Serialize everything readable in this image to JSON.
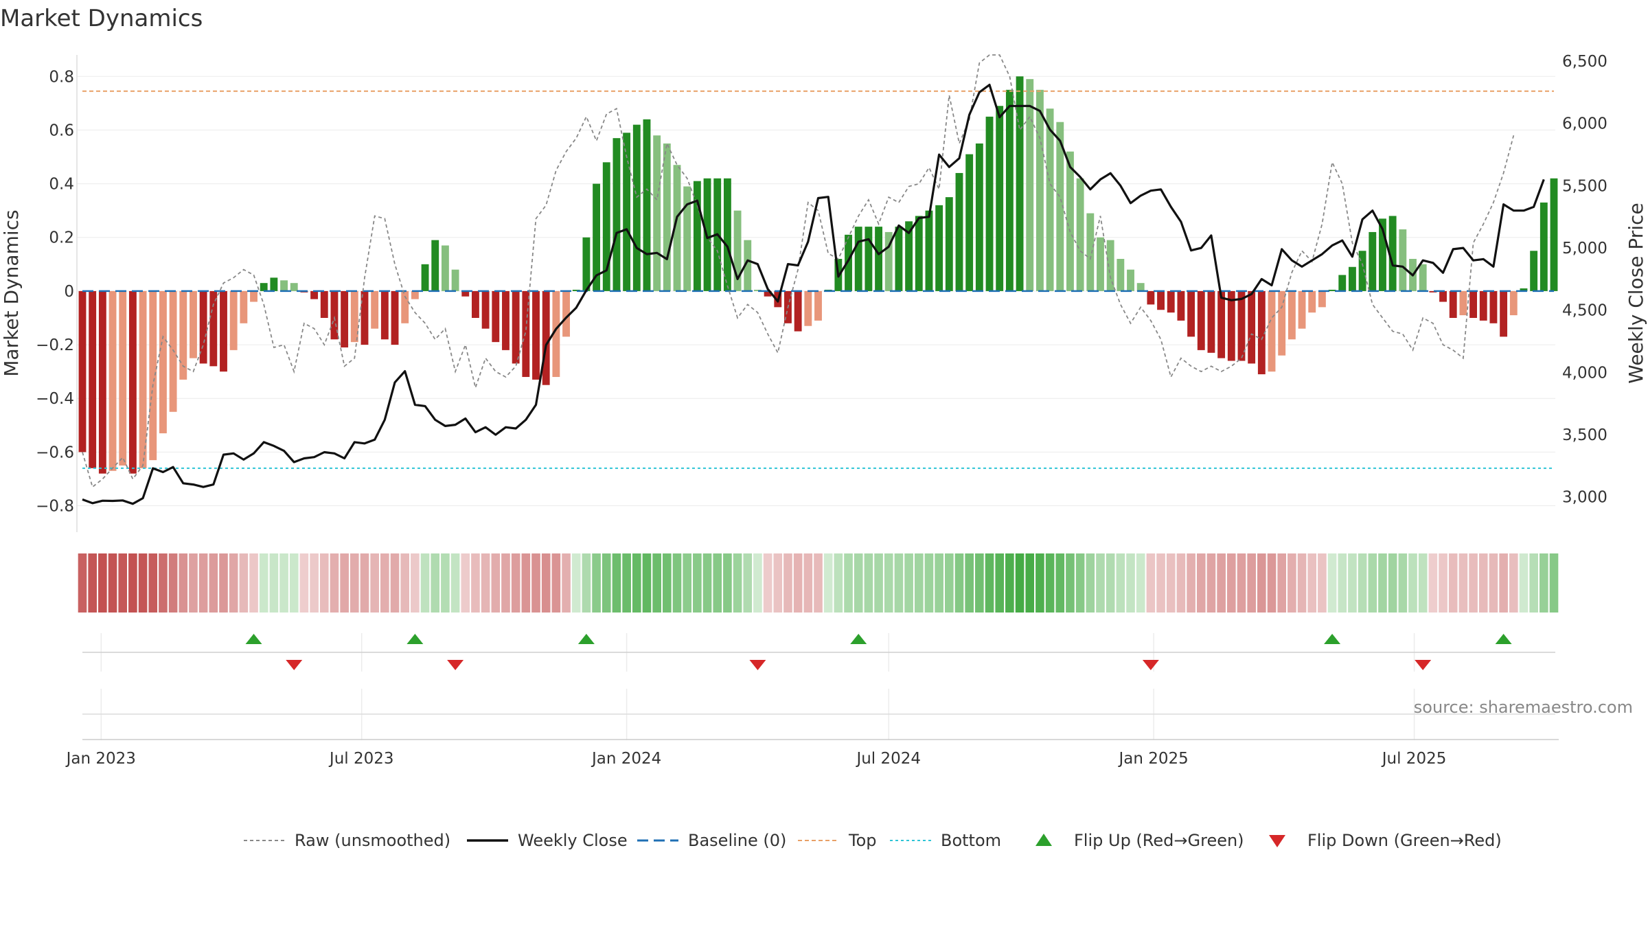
{
  "chart_data": {
    "type": "bar",
    "title": "Market Dynamics",
    "ylabel": "Market Dynamics",
    "y2label": "Weekly Close Price",
    "ylim": [
      -0.86,
      0.88
    ],
    "y2lim": [
      2800,
      6550
    ],
    "yticks": [
      -0.8,
      -0.6,
      -0.4,
      -0.2,
      0,
      0.2,
      0.4,
      0.6,
      0.8
    ],
    "ytick_labels": [
      "−0.8",
      "−0.6",
      "−0.4",
      "−0.2",
      "0",
      "0.2",
      "0.4",
      "0.6",
      "0.8"
    ],
    "y2ticks": [
      3000,
      3500,
      4000,
      4500,
      5000,
      5500,
      6000,
      6500
    ],
    "y2tick_labels": [
      "3,000",
      "3,500",
      "4,000",
      "4,500",
      "5,000",
      "5,500",
      "6,000",
      "6,500"
    ],
    "x_start": "2022-12-19",
    "x_step_days": 7,
    "xticks": [
      {
        "label": "Jan 2023",
        "index": 1.86
      },
      {
        "label": "Jul 2023",
        "index": 27.71
      },
      {
        "label": "Jan 2024",
        "index": 54.0
      },
      {
        "label": "Jul 2024",
        "index": 80.0
      },
      {
        "label": "Jan 2025",
        "index": 106.29
      },
      {
        "label": "Jul 2025",
        "index": 132.14
      }
    ],
    "top_level": 0.745,
    "bottom_level": -0.66,
    "grid": true,
    "legend_position": "bottom",
    "series": [
      {
        "name": "Raw (unsmoothed)",
        "values": [
          -0.6,
          -0.73,
          -0.7,
          -0.66,
          -0.62,
          -0.7,
          -0.65,
          -0.35,
          -0.17,
          -0.22,
          -0.28,
          -0.3,
          -0.2,
          -0.05,
          0.03,
          0.05,
          0.08,
          0.06,
          -0.05,
          -0.21,
          -0.2,
          -0.3,
          -0.12,
          -0.14,
          -0.2,
          -0.1,
          -0.28,
          -0.25,
          0.05,
          0.28,
          0.27,
          0.1,
          -0.02,
          -0.08,
          -0.12,
          -0.18,
          -0.14,
          -0.3,
          -0.2,
          -0.36,
          -0.25,
          -0.3,
          -0.32,
          -0.28,
          -0.15,
          0.27,
          0.32,
          0.45,
          0.52,
          0.57,
          0.65,
          0.56,
          0.66,
          0.68,
          0.5,
          0.35,
          0.38,
          0.34,
          0.55,
          0.47,
          0.42,
          0.32,
          0.2,
          0.15,
          0.02,
          -0.1,
          -0.05,
          -0.08,
          -0.16,
          -0.23,
          -0.06,
          0.08,
          0.33,
          0.3,
          0.14,
          0.12,
          0.2,
          0.28,
          0.34,
          0.25,
          0.35,
          0.33,
          0.39,
          0.4,
          0.46,
          0.38,
          0.73,
          0.55,
          0.64,
          0.85,
          0.88,
          0.88,
          0.8,
          0.6,
          0.65,
          0.57,
          0.4,
          0.35,
          0.22,
          0.15,
          0.12,
          0.28,
          0.05,
          -0.05,
          -0.12,
          -0.06,
          -0.11,
          -0.18,
          -0.32,
          -0.25,
          -0.28,
          -0.3,
          -0.28,
          -0.3,
          -0.28,
          -0.25,
          -0.16,
          -0.18,
          -0.1,
          -0.06,
          0.07,
          0.15,
          0.11,
          0.25,
          0.48,
          0.4,
          0.18,
          0.1,
          -0.05,
          -0.1,
          -0.15,
          -0.16,
          -0.22,
          -0.1,
          -0.12,
          -0.2,
          -0.22,
          -0.25,
          0.18,
          0.25,
          0.33,
          0.44,
          0.58
        ]
      },
      {
        "name": "Weekly Close",
        "values": [
          2980,
          2950,
          2970,
          2968,
          2972,
          2945,
          2990,
          3230,
          3200,
          3240,
          3110,
          3100,
          3080,
          3100,
          3340,
          3350,
          3300,
          3350,
          3440,
          3410,
          3370,
          3280,
          3310,
          3320,
          3360,
          3350,
          3310,
          3440,
          3430,
          3460,
          3620,
          3920,
          4010,
          3740,
          3730,
          3620,
          3570,
          3580,
          3630,
          3520,
          3560,
          3500,
          3560,
          3550,
          3620,
          3740,
          4220,
          4350,
          4440,
          4520,
          4660,
          4780,
          4820,
          5120,
          5150,
          5000,
          4950,
          4960,
          4910,
          5250,
          5350,
          5380,
          5080,
          5110,
          5010,
          4750,
          4900,
          4870,
          4670,
          4570,
          4870,
          4860,
          5050,
          5400,
          5410,
          4770,
          4900,
          5050,
          5070,
          4950,
          5010,
          5180,
          5120,
          5240,
          5250,
          5750,
          5650,
          5720,
          6070,
          6250,
          6310,
          6050,
          6140,
          6140,
          6140,
          6100,
          5950,
          5860,
          5650,
          5570,
          5470,
          5550,
          5600,
          5500,
          5360,
          5420,
          5460,
          5470,
          5330,
          5210,
          4980,
          5000,
          5100,
          4600,
          4580,
          4590,
          4630,
          4750,
          4700,
          4990,
          4900,
          4850,
          4900,
          4950,
          5020,
          5060,
          4930,
          5230,
          5300,
          5150,
          4860,
          4850,
          4780,
          4900,
          4880,
          4800,
          4990,
          5000,
          4900,
          4910,
          4850,
          5350,
          5300,
          5300,
          5330,
          5550
        ]
      },
      {
        "name": "Baseline (0)"
      },
      {
        "name": "Top"
      },
      {
        "name": "Bottom"
      },
      {
        "name": "Flip Up (Red→Green)",
        "indices": [
          17,
          33,
          50,
          77,
          124,
          141
        ]
      },
      {
        "name": "Flip Down (Green→Red)",
        "indices": [
          21,
          37,
          67,
          106,
          133
        ]
      }
    ],
    "bar_values": [
      -0.6,
      -0.66,
      -0.68,
      -0.67,
      -0.65,
      -0.68,
      -0.66,
      -0.63,
      -0.53,
      -0.45,
      -0.33,
      -0.25,
      -0.27,
      -0.28,
      -0.3,
      -0.22,
      -0.12,
      -0.04,
      0.03,
      0.05,
      0.04,
      0.03,
      -0.005,
      -0.03,
      -0.1,
      -0.18,
      -0.21,
      -0.19,
      -0.2,
      -0.14,
      -0.18,
      -0.2,
      -0.12,
      -0.03,
      0.1,
      0.19,
      0.17,
      0.08,
      -0.02,
      -0.1,
      -0.14,
      -0.19,
      -0.22,
      -0.27,
      -0.32,
      -0.33,
      -0.35,
      -0.32,
      -0.17,
      0.005,
      0.2,
      0.4,
      0.48,
      0.57,
      0.59,
      0.62,
      0.64,
      0.58,
      0.55,
      0.47,
      0.39,
      0.41,
      0.42,
      0.42,
      0.42,
      0.3,
      0.19,
      0.005,
      -0.02,
      -0.06,
      -0.12,
      -0.15,
      -0.13,
      -0.11,
      0.005,
      0.12,
      0.21,
      0.24,
      0.24,
      0.24,
      0.22,
      0.24,
      0.26,
      0.28,
      0.3,
      0.32,
      0.35,
      0.44,
      0.51,
      0.55,
      0.65,
      0.69,
      0.75,
      0.8,
      0.79,
      0.75,
      0.68,
      0.63,
      0.52,
      0.42,
      0.29,
      0.2,
      0.19,
      0.12,
      0.08,
      0.03,
      -0.05,
      -0.07,
      -0.08,
      -0.11,
      -0.17,
      -0.22,
      -0.23,
      -0.25,
      -0.26,
      -0.26,
      -0.27,
      -0.31,
      -0.3,
      -0.24,
      -0.18,
      -0.14,
      -0.08,
      -0.06,
      0.005,
      0.06,
      0.09,
      0.15,
      0.22,
      0.27,
      0.28,
      0.23,
      0.12,
      0.1,
      -0.005,
      -0.04,
      -0.1,
      -0.09,
      -0.1,
      -0.11,
      -0.12,
      -0.17,
      -0.09,
      0.01,
      0.15,
      0.33,
      0.42
    ]
  },
  "colors": {
    "strong_green": "#228b22",
    "light_green": "#86bf7e",
    "strong_red": "#b22222",
    "light_red": "#e8967a",
    "price_line": "#111111",
    "raw_line": "#888888",
    "baseline": "#1f6fb4",
    "top": "#e8a066",
    "bottom": "#2ec4d6",
    "flip_up": "#2ca02c",
    "flip_down": "#d62728"
  },
  "source": "source: sharemaestro.com"
}
